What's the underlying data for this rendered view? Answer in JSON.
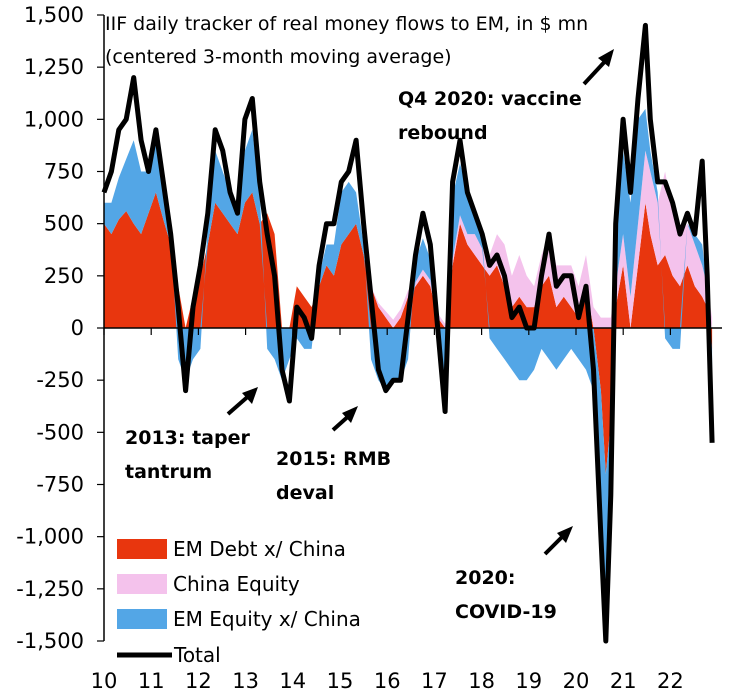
{
  "chart_data": {
    "type": "area",
    "title": "IIF daily tracker of real money flows to EM, in $ mn",
    "subtitle": "(centered 3-month moving average)",
    "ylim": [
      -1500,
      1500
    ],
    "yticks": [
      1500,
      1250,
      1000,
      750,
      500,
      250,
      0,
      -250,
      -500,
      -750,
      -1000,
      -1250,
      -1500
    ],
    "ytick_labels": [
      "1,500",
      "1,250",
      "1,000",
      "750",
      "500",
      "250",
      "0",
      "-250",
      "-500",
      "-750",
      "-1,000",
      "-1,250",
      "-1,500"
    ],
    "xlim": [
      2010,
      2022.5
    ],
    "xtick_labels": [
      "10",
      "11",
      "12",
      "13",
      "14",
      "15",
      "16",
      "17",
      "18",
      "19",
      "20",
      "21",
      "22"
    ],
    "legend": [
      "EM Debt x/ China",
      "China Equity",
      "EM Equity x/ China",
      "Total"
    ],
    "legend_position": "bottom-left",
    "colors": {
      "debt": "#e8360e",
      "china": "#f4c2ec",
      "equity": "#53a6e6",
      "total": "#000000"
    },
    "x": [
      2010.0,
      2010.15,
      2010.3,
      2010.45,
      2010.6,
      2010.75,
      2010.9,
      2011.05,
      2011.2,
      2011.35,
      2011.5,
      2011.65,
      2011.8,
      2011.95,
      2012.1,
      2012.25,
      2012.4,
      2012.55,
      2012.7,
      2012.85,
      2013.0,
      2013.15,
      2013.3,
      2013.45,
      2013.6,
      2013.75,
      2013.9,
      2014.05,
      2014.2,
      2014.35,
      2014.5,
      2014.65,
      2014.8,
      2014.95,
      2015.1,
      2015.25,
      2015.4,
      2015.55,
      2015.7,
      2015.85,
      2016.0,
      2016.15,
      2016.3,
      2016.45,
      2016.6,
      2016.75,
      2016.9,
      2017.05,
      2017.2,
      2017.35,
      2017.5,
      2017.65,
      2017.8,
      2017.95,
      2018.1,
      2018.25,
      2018.4,
      2018.55,
      2018.7,
      2018.85,
      2019.0,
      2019.15,
      2019.3,
      2019.45,
      2019.6,
      2019.75,
      2019.9,
      2020.05,
      2020.15,
      2020.25,
      2020.35,
      2020.5,
      2020.65,
      2020.8,
      2020.95,
      2021.05,
      2021.2,
      2021.35,
      2021.5,
      2021.65,
      2021.8,
      2021.95,
      2022.1,
      2022.2,
      2022.3
    ],
    "series": [
      {
        "name": "EM Debt x/ China",
        "values": [
          500,
          450,
          520,
          560,
          500,
          450,
          550,
          650,
          520,
          400,
          200,
          0,
          150,
          250,
          400,
          600,
          550,
          500,
          450,
          600,
          650,
          500,
          550,
          450,
          0,
          0,
          200,
          150,
          100,
          200,
          300,
          250,
          400,
          450,
          500,
          350,
          200,
          100,
          50,
          0,
          50,
          150,
          200,
          250,
          200,
          50,
          0,
          300,
          500,
          400,
          350,
          300,
          250,
          300,
          200,
          100,
          150,
          100,
          100,
          200,
          250,
          100,
          150,
          100,
          50,
          200,
          0,
          -300,
          -700,
          -450,
          100,
          300,
          0,
          300,
          600,
          450,
          300,
          350,
          250,
          200,
          300,
          200,
          150,
          100,
          -100
        ]
      },
      {
        "name": "China Equity",
        "values": [
          0,
          0,
          0,
          0,
          0,
          0,
          0,
          0,
          0,
          0,
          0,
          0,
          0,
          0,
          0,
          0,
          0,
          0,
          0,
          0,
          0,
          0,
          0,
          0,
          0,
          0,
          0,
          0,
          0,
          0,
          0,
          0,
          0,
          0,
          0,
          0,
          0,
          20,
          30,
          40,
          40,
          30,
          20,
          30,
          30,
          20,
          20,
          30,
          40,
          50,
          100,
          80,
          100,
          150,
          200,
          150,
          200,
          150,
          100,
          150,
          200,
          200,
          150,
          200,
          150,
          150,
          100,
          50,
          50,
          50,
          100,
          150,
          150,
          200,
          250,
          300,
          300,
          400,
          300,
          250,
          200,
          200,
          150,
          100,
          50
        ]
      },
      {
        "name": "EM Equity x/ China",
        "values": [
          100,
          150,
          200,
          250,
          400,
          300,
          200,
          250,
          150,
          50,
          -150,
          -250,
          -150,
          -100,
          100,
          250,
          200,
          150,
          100,
          250,
          300,
          150,
          -100,
          -150,
          -250,
          -150,
          -50,
          -100,
          -100,
          50,
          100,
          150,
          250,
          250,
          150,
          50,
          -150,
          -250,
          -300,
          -250,
          -250,
          -150,
          100,
          150,
          100,
          -100,
          -300,
          300,
          250,
          200,
          100,
          50,
          -50,
          -100,
          -150,
          -200,
          -250,
          -250,
          -200,
          -100,
          -150,
          -200,
          -150,
          -100,
          -150,
          -200,
          -300,
          -500,
          -600,
          -250,
          250,
          400,
          450,
          500,
          200,
          100,
          50,
          -50,
          -100,
          -100,
          0,
          50,
          100,
          0,
          -400
        ]
      },
      {
        "name": "Total",
        "values": [
          650,
          750,
          950,
          1000,
          1200,
          900,
          750,
          950,
          700,
          450,
          100,
          -300,
          100,
          300,
          550,
          950,
          850,
          650,
          550,
          1000,
          1100,
          700,
          450,
          250,
          -200,
          -350,
          100,
          50,
          -50,
          300,
          500,
          500,
          700,
          750,
          900,
          500,
          150,
          -200,
          -300,
          -250,
          -250,
          50,
          350,
          550,
          400,
          0,
          -400,
          700,
          900,
          650,
          550,
          450,
          300,
          350,
          250,
          50,
          100,
          0,
          0,
          250,
          450,
          200,
          250,
          250,
          50,
          200,
          -200,
          -1000,
          -1500,
          -800,
          500,
          1000,
          650,
          1100,
          1450,
          1000,
          700,
          700,
          600,
          450,
          550,
          450,
          800,
          250,
          -550
        ]
      }
    ]
  },
  "annotations": {
    "taper": [
      "2013: taper",
      "tantrum"
    ],
    "rmb": [
      "2015: RMB",
      "deval"
    ],
    "covid": [
      "2020:",
      "COVID-19"
    ],
    "vaccine": [
      "Q4 2020: vaccine",
      "rebound"
    ]
  }
}
